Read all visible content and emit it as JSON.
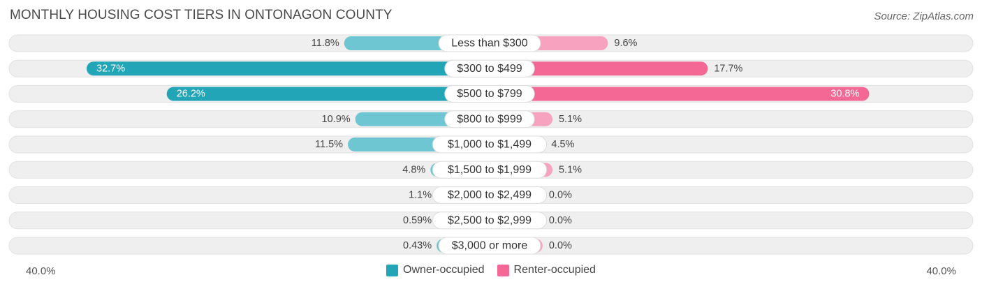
{
  "title": "MONTHLY HOUSING COST TIERS IN ONTONAGON COUNTY",
  "source": "Source: ZipAtlas.com",
  "colors": {
    "owner_dark": "#22a6b7",
    "owner_light": "#6ec6d2",
    "renter_dark": "#f36895",
    "renter_light": "#f7a3bf",
    "track": "#efefef"
  },
  "chart_data": {
    "type": "bar",
    "orientation": "diverging-horizontal",
    "categories": [
      "Less than $300",
      "$300 to $499",
      "$500 to $799",
      "$800 to $999",
      "$1,000 to $1,499",
      "$1,500 to $1,999",
      "$2,000 to $2,499",
      "$2,500 to $2,999",
      "$3,000 or more"
    ],
    "series": [
      {
        "name": "Owner-occupied",
        "values": [
          11.8,
          32.7,
          26.2,
          10.9,
          11.5,
          4.8,
          1.1,
          0.59,
          0.43
        ],
        "labels": [
          "11.8%",
          "32.7%",
          "26.2%",
          "10.9%",
          "11.5%",
          "4.8%",
          "1.1%",
          "0.59%",
          "0.43%"
        ]
      },
      {
        "name": "Renter-occupied",
        "values": [
          9.6,
          17.7,
          30.8,
          5.1,
          4.5,
          5.1,
          0.0,
          0.0,
          0.0
        ],
        "labels": [
          "9.6%",
          "17.7%",
          "30.8%",
          "5.1%",
          "4.5%",
          "5.1%",
          "0.0%",
          "0.0%",
          "0.0%"
        ]
      }
    ],
    "xlim": [
      -40,
      40
    ],
    "axis_labels": {
      "left": "40.0%",
      "right": "40.0%"
    },
    "legend_position": "bottom"
  }
}
